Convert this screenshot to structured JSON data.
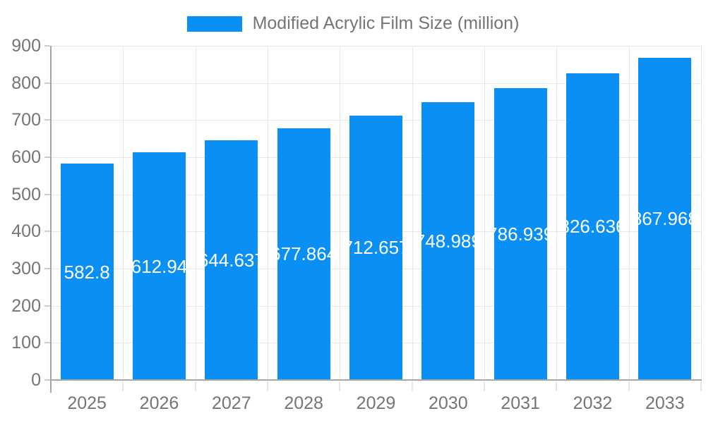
{
  "legend": {
    "label": "Modified Acrylic Film Size (million)"
  },
  "chart_data": {
    "type": "bar",
    "title": "",
    "xlabel": "",
    "ylabel": "",
    "categories": [
      "2025",
      "2026",
      "2027",
      "2028",
      "2029",
      "2030",
      "2031",
      "2032",
      "2033"
    ],
    "series": [
      {
        "name": "Modified Acrylic Film Size (million)",
        "values": [
          582.8,
          612.94,
          644.637,
          677.864,
          712.657,
          748.989,
          786.939,
          826.636,
          867.968
        ]
      }
    ],
    "bar_labels": [
      "582.8",
      "612.94",
      "644.637",
      "677.864",
      "712.657",
      "748.989",
      "786.939",
      "826.636",
      "867.968"
    ],
    "ylim": [
      0,
      900
    ],
    "yticks": [
      0,
      100,
      200,
      300,
      400,
      500,
      600,
      700,
      800,
      900
    ],
    "grid": true,
    "legend_position": "top-center",
    "colors": {
      "bar": "#0a90f5",
      "bar_label": "#ffffff",
      "axis_text": "#757575",
      "grid_line": "#e6e6e6",
      "axis_line": "#a6a6a6",
      "tick_mark": "#cccccc",
      "background": "#ffffff"
    }
  }
}
